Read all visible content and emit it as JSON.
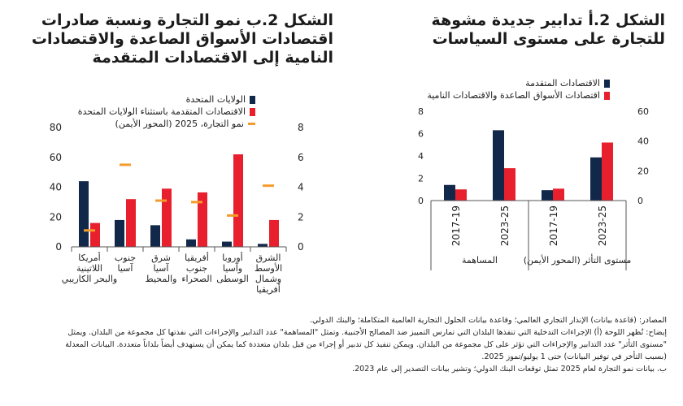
{
  "panel_a": {
    "title": "الشكل 2.أ تدابير جديدة مشوهة للتجارة على مستوى السياسات",
    "legend": [
      {
        "label": "الاقتصادات المتقدمة",
        "color": "#12284b"
      },
      {
        "label": "اقتصادات الأسواق الصاعدة والاقتصادات النامية",
        "color": "#e8202e"
      }
    ]
  },
  "panel_b": {
    "title": "الشكل 2.ب نمو التجارة ونسبة صادرات اقتصادات الأسواق الصاعدة والاقتصادات النامية إلى الاقتصادات المتقدمة",
    "legend": [
      {
        "label": "الولايات المتحدة",
        "color": "#12284b",
        "kind": "bar"
      },
      {
        "label": "الاقتصادات المتقدمة باستثناء الولايات المتحدة",
        "color": "#e8202e",
        "kind": "bar"
      },
      {
        "label": "نمو التجارة، 2025 (المحور الأيمن)",
        "color": "#f39c2b",
        "kind": "dash"
      }
    ]
  },
  "chart_data": [
    {
      "type": "bar",
      "title": "الشكل 2.أ تدابير جديدة مشوهة للتجارة على مستوى السياسات",
      "categories": [
        "2017-19",
        "2023-25",
        "2017-19",
        "2023-25"
      ],
      "groups": [
        {
          "label": "المساهمة",
          "categories": [
            "2017-19",
            "2023-25"
          ]
        },
        {
          "label": "مستوى التأثر (المحور الأيمن)",
          "categories": [
            "2017-19",
            "2023-25"
          ]
        }
      ],
      "series": [
        {
          "name": "الاقتصادات المتقدمة",
          "color": "#12284b",
          "values": [
            1.4,
            6.3,
            7,
            29
          ]
        },
        {
          "name": "اقتصادات الأسواق الصاعدة والاقتصادات النامية",
          "color": "#e8202e",
          "values": [
            1.0,
            2.9,
            8,
            39
          ]
        }
      ],
      "axis_assignment": [
        "left",
        "left",
        "right",
        "right"
      ],
      "ylim_left": [
        0,
        8
      ],
      "yticks_left": [
        0,
        2,
        4,
        6,
        8
      ],
      "ylim_right": [
        0,
        60
      ],
      "yticks_right": [
        0,
        20,
        40,
        60
      ],
      "grid": false,
      "legend_position": "top"
    },
    {
      "type": "bar",
      "title": "الشكل 2.ب نمو التجارة ونسبة صادرات اقتصادات الأسواق الصاعدة والاقتصادات النامية إلى الاقتصادات المتقدمة",
      "categories": [
        "أمريكا اللاتينية والبحر الكاريبي",
        "جنوب آسيا",
        "شرق آسيا والمحيط",
        "أفريقيا جنوب الصحراء",
        "أوروبا وآسيا الوسطى",
        "الشرق الأوسط وشمال أفريقيا"
      ],
      "series": [
        {
          "name": "الولايات المتحدة",
          "color": "#12284b",
          "values": [
            44,
            18,
            14.5,
            5,
            3.5,
            2
          ]
        },
        {
          "name": "الاقتصادات المتقدمة باستثناء الولايات المتحدة",
          "color": "#e8202e",
          "values": [
            16,
            32,
            39,
            36.5,
            62,
            18
          ]
        },
        {
          "name": "نمو التجارة، 2025 (المحور الأيمن)",
          "color": "#f39c2b",
          "kind": "marker",
          "axis": "right",
          "values": [
            1.1,
            5.5,
            3.1,
            3.0,
            2.1,
            4.1
          ]
        }
      ],
      "ylim_left": [
        0,
        80
      ],
      "yticks_left": [
        0,
        20,
        40,
        60,
        80
      ],
      "ylim_right": [
        0,
        8
      ],
      "yticks_right": [
        0,
        2,
        4,
        6,
        8
      ],
      "grid": false,
      "legend_position": "top"
    }
  ],
  "notes": {
    "sources": "المصادر: (قاعدة بيانات) الإنذار التجاري العالمي؛ وقاعدة بيانات الحلول التجارية العالمية المتكاملة؛ والبنك الدولي.",
    "explanation_1": "إيضاح: تُظهر اللوحة (أ) الإجراءات التدخلية التي تنفذها البلدان التي تمارس التمييز ضد المصالح الأجنبية. وتمثل \"المساهمة\" عدد التدابير والإجراءات التي نفذتها كل مجموعة من البلدان. ويمثل",
    "explanation_2": "\"مستوى التأثر\" عدد التدابير والإجراءات التي تؤثر على كل مجموعة من البلدان. ويمكن تنفيذ كل تدبير أو إجراء من قبل بلدان متعددة كما يمكن أن يستهدف أيضاً بلداناً متعددة. البيانات المعدلة",
    "explanation_3": "(بسبب التأخر في توفير البيانات) حتى 1 يوليو/تموز 2025.",
    "note_b": "ب. بيانات نمو التجارة لعام 2025 تمثل توقعات البنك الدولي؛ وتشير بيانات التصدير إلى عام 2023."
  }
}
